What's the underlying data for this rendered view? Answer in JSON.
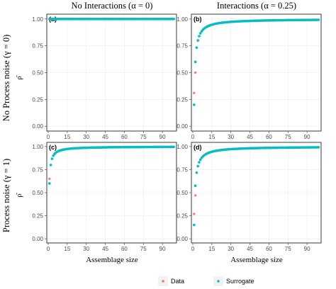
{
  "column_titles": [
    "No Interactions (α = 0)",
    "Interactions (α = 0.25)"
  ],
  "row_titles": [
    "No Process noise (γ = 0)",
    "Process noise (γ = 1)"
  ],
  "x_axis_title": "Assemblage size",
  "y_axis_title": "ρ̄",
  "legend": {
    "items": [
      {
        "label": "Data",
        "color": "#F8766D"
      },
      {
        "label": "Surrogate",
        "color": "#00BFC4"
      }
    ]
  },
  "colors": {
    "data": "#F8766D",
    "surrogate": "#00BFC4"
  },
  "chart_data": [
    {
      "type": "scatter",
      "panel": "(a)",
      "xlim": [
        0,
        100
      ],
      "ylim": [
        0,
        1
      ],
      "xticks": [
        "0",
        "15",
        "30",
        "45",
        "60",
        "75",
        "90"
      ],
      "yticks": [
        "0.00",
        "0.25",
        "0.50",
        "0.75",
        "1.00"
      ],
      "model": {
        "kind": "constant",
        "value": 1.0,
        "data_offsets": {}
      },
      "series": [
        {
          "name": "Data"
        },
        {
          "name": "Surrogate"
        }
      ]
    },
    {
      "type": "scatter",
      "panel": "(b)",
      "xlim": [
        0,
        100
      ],
      "ylim": [
        0,
        1
      ],
      "xticks": [
        "0",
        "15",
        "30",
        "45",
        "60",
        "75",
        "90"
      ],
      "yticks": [
        "0.00",
        "0.25",
        "0.50",
        "0.75",
        "1.00"
      ],
      "model": {
        "kind": "reciprocal",
        "a": 1.0,
        "b": 0.8,
        "min": 0.19,
        "data_offsets": {
          "1": 0.31,
          "2": 0.5
        }
      },
      "series": [
        {
          "name": "Data"
        },
        {
          "name": "Surrogate"
        }
      ]
    },
    {
      "type": "scatter",
      "panel": "(c)",
      "xlim": [
        0,
        100
      ],
      "ylim": [
        0,
        1
      ],
      "xticks": [
        "0",
        "15",
        "30",
        "45",
        "60",
        "75",
        "90"
      ],
      "yticks": [
        "0.00",
        "0.25",
        "0.50",
        "0.75",
        "1.00"
      ],
      "model": {
        "kind": "reciprocal",
        "a": 1.0,
        "b": 0.4,
        "min": 0.6,
        "data_offsets": {
          "1": 0.65
        }
      },
      "series": [
        {
          "name": "Data"
        },
        {
          "name": "Surrogate"
        }
      ]
    },
    {
      "type": "scatter",
      "panel": "(d)",
      "xlim": [
        0,
        100
      ],
      "ylim": [
        0,
        1
      ],
      "xticks": [
        "0",
        "15",
        "30",
        "45",
        "60",
        "75",
        "90"
      ],
      "yticks": [
        "0.00",
        "0.25",
        "0.50",
        "0.75",
        "1.00"
      ],
      "model": {
        "kind": "reciprocal",
        "a": 1.0,
        "b": 0.85,
        "min": 0.15,
        "data_offsets": {
          "1": 0.27,
          "2": 0.47
        }
      },
      "series": [
        {
          "name": "Data"
        },
        {
          "name": "Surrogate"
        }
      ]
    }
  ]
}
